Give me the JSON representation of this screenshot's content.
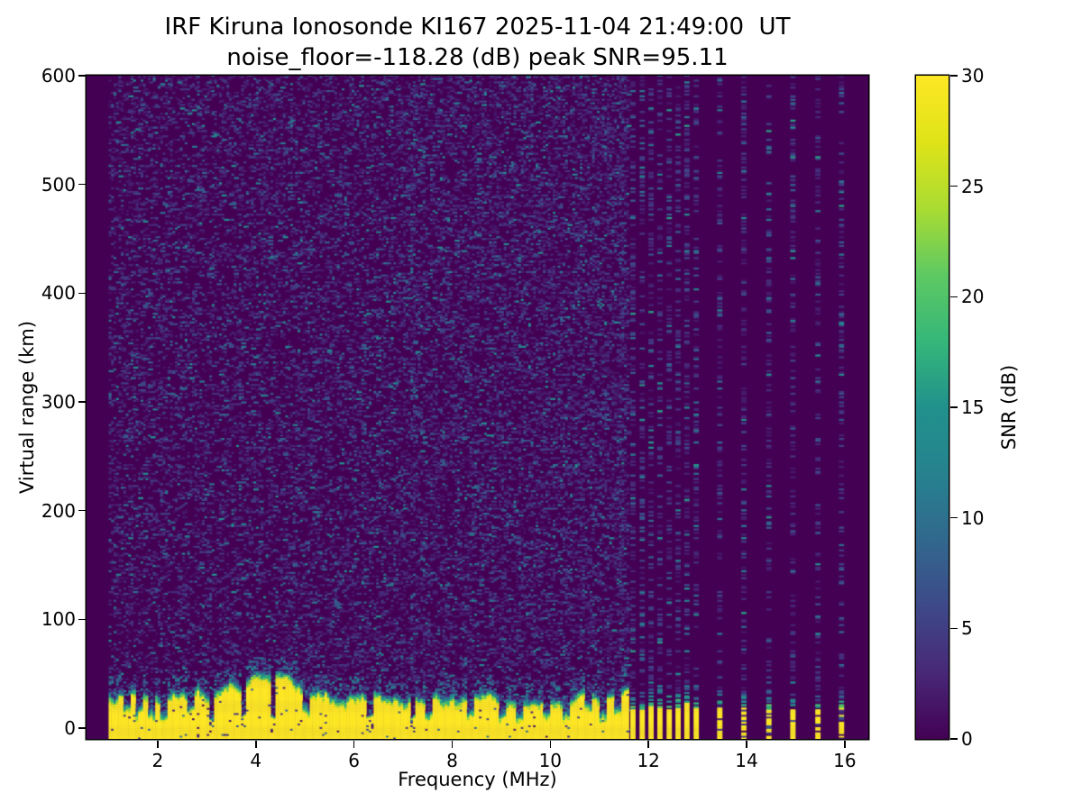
{
  "figure": {
    "title_line1": "IRF Kiruna Ionosonde KI167 2025-11-04 21:49:00  UT",
    "title_line2": "noise_floor=-118.28 (dB) peak SNR=95.11"
  },
  "chart_data": {
    "type": "heatmap",
    "title": "IRF Kiruna Ionosonde KI167 2025-11-04 21:49:00 UT",
    "subtitle": "noise_floor=-118.28 (dB) peak SNR=95.11",
    "station": "KI167",
    "timestamp_ut": "2025-11-04 21:49:00",
    "noise_floor_db": -118.28,
    "peak_snr_db": 95.11,
    "xlabel": "Frequency (MHz)",
    "ylabel": "Virtual range (km)",
    "xlim": [
      0.55,
      16.48
    ],
    "ylim": [
      -10,
      600
    ],
    "x_ticks": [
      2,
      4,
      6,
      8,
      10,
      12,
      14,
      16
    ],
    "y_ticks": [
      0,
      100,
      200,
      300,
      400,
      500,
      600
    ],
    "grid": false,
    "colorbar": {
      "label": "SNR (dB)",
      "ticks": [
        0,
        5,
        10,
        15,
        20,
        25,
        30
      ],
      "vmin": 0,
      "vmax": 30
    },
    "colormap": {
      "name": "viridis",
      "stops": [
        [
          0,
          "#440154"
        ],
        [
          0.1,
          "#482878"
        ],
        [
          0.2,
          "#3e4989"
        ],
        [
          0.3,
          "#31688e"
        ],
        [
          0.4,
          "#26828e"
        ],
        [
          0.5,
          "#21918c"
        ],
        [
          0.6,
          "#35b779"
        ],
        [
          0.7,
          "#5ec962"
        ],
        [
          0.8,
          "#aadc32"
        ],
        [
          0.9,
          "#dfe318"
        ],
        [
          1,
          "#fde725"
        ]
      ]
    },
    "sweep": {
      "continuous_band_mhz": [
        1.0,
        11.58
      ],
      "stepped_freqs_mhz": [
        11.68,
        11.87,
        12.05,
        12.23,
        12.42,
        12.6,
        12.78,
        12.97,
        13.45,
        13.94,
        14.45,
        14.94,
        15.45,
        15.93
      ]
    },
    "ground_echo": {
      "solid_top_km": 22,
      "fringe_top_km": [
        26,
        52
      ],
      "deep_notch_freqs_mhz": [
        3.07,
        3.72,
        4.31,
        6.3,
        7.16
      ],
      "shallow_dip_freqs_mhz": [
        1.35,
        1.6,
        1.85,
        2.1,
        2.65,
        5.0,
        7.5,
        8.35,
        9.0,
        9.35,
        9.9,
        10.3,
        10.75,
        11.05,
        11.35
      ]
    },
    "noise_speckle": {
      "density_base": 0.33,
      "density_per_mhz": 0.016,
      "mean_db": 2.7,
      "max_db": 14,
      "enhanced_columns_mhz": [
        7.18,
        11.45
      ],
      "seed": 167
    }
  }
}
